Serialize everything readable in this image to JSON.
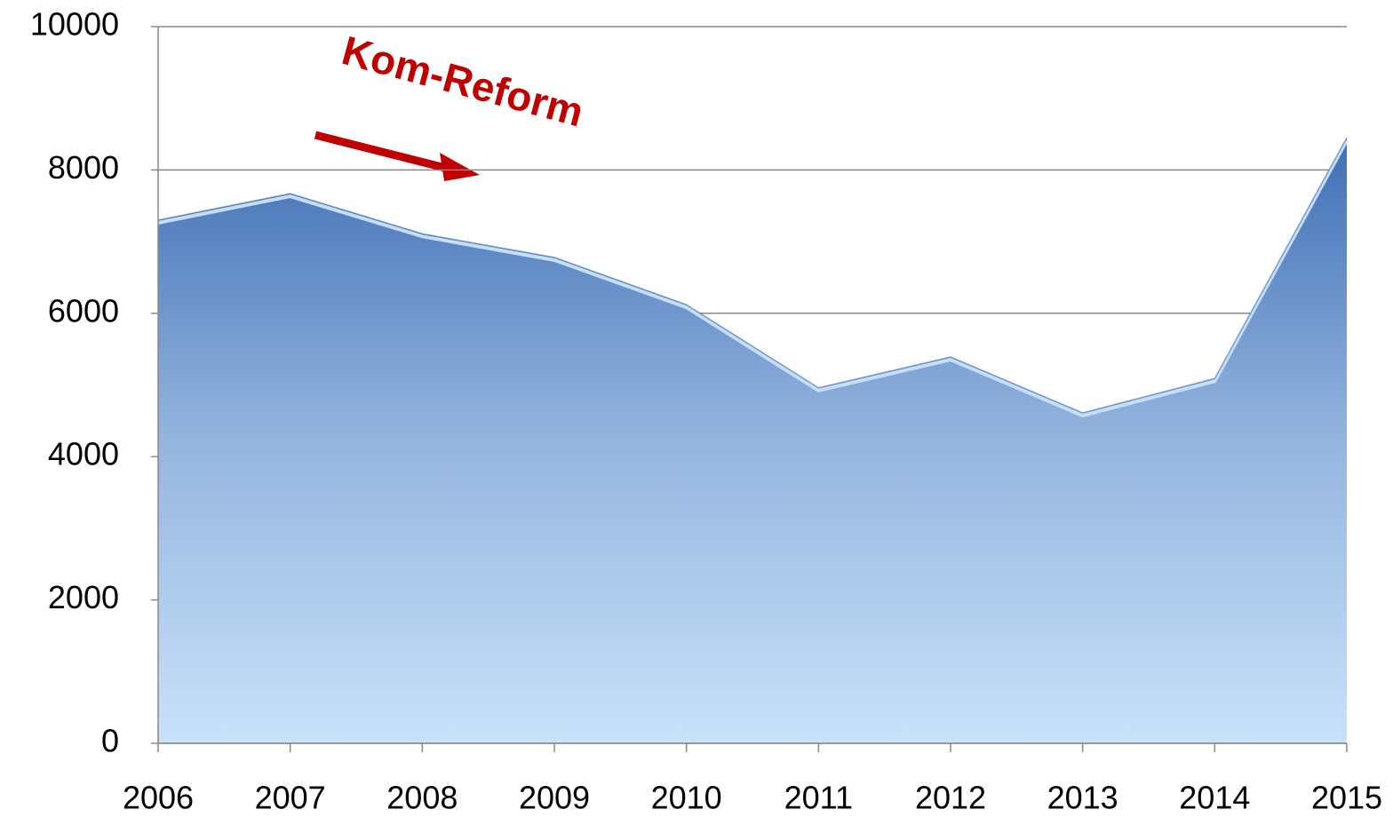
{
  "chart_data": {
    "type": "area",
    "categories": [
      "2006",
      "2007",
      "2008",
      "2009",
      "2010",
      "2011",
      "2012",
      "2013",
      "2014",
      "2015"
    ],
    "values": [
      7300,
      7670,
      7110,
      6780,
      6120,
      4960,
      5390,
      4610,
      5090,
      8450
    ],
    "color": "#3f6fb5",
    "ylim": [
      0,
      10000
    ],
    "yticks": [
      0,
      2000,
      4000,
      6000,
      8000,
      10000
    ],
    "grid": true,
    "annotation": {
      "text": "Kom-Reform",
      "color": "#c00000"
    }
  }
}
